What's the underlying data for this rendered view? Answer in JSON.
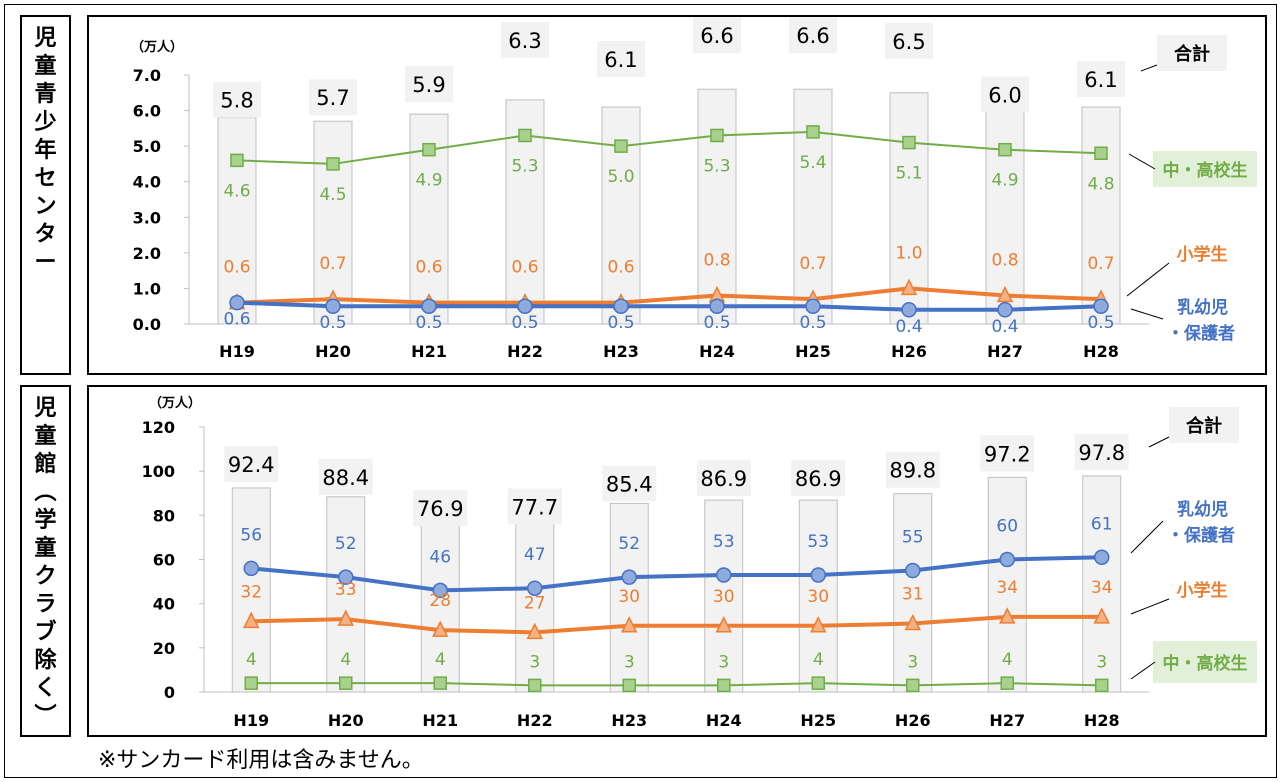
{
  "footnote": "※サンカード利用は含みません。",
  "colors": {
    "total_bar": "#f2f2f2",
    "total_bar_border": "#bfbfbf",
    "junior_high": "#70ad47",
    "elementary": "#ed7d31",
    "infant": "#4472c4",
    "label_box_green": "#e2efd9"
  },
  "chart_data": [
    {
      "type": "bar+line",
      "side_title": [
        "児",
        "童",
        "青",
        "少",
        "年",
        "セ",
        "ン",
        "タ",
        "ー"
      ],
      "unit": "（万人）",
      "categories": [
        "H19",
        "H20",
        "H21",
        "H22",
        "H23",
        "H24",
        "H25",
        "H26",
        "H27",
        "H28"
      ],
      "ylim": [
        0,
        7.0
      ],
      "yticks": [
        "0.0",
        "1.0",
        "2.0",
        "3.0",
        "4.0",
        "5.0",
        "6.0",
        "7.0"
      ],
      "total": {
        "name": "合計",
        "values": [
          5.8,
          5.7,
          5.9,
          6.3,
          6.1,
          6.6,
          6.6,
          6.5,
          6.0,
          6.1
        ],
        "labels": [
          "5.8",
          "5.7",
          "5.9",
          "6.3",
          "6.1",
          "6.6",
          "6.6",
          "6.5",
          "6.0",
          "6.1"
        ]
      },
      "series": [
        {
          "name": "中・高校生",
          "key": "junior_high",
          "marker": "square",
          "values": [
            4.6,
            4.5,
            4.9,
            5.3,
            5.0,
            5.3,
            5.4,
            5.1,
            4.9,
            4.8
          ],
          "labels": [
            "4.6",
            "4.5",
            "4.9",
            "5.3",
            "5.0",
            "5.3",
            "5.4",
            "5.1",
            "4.9",
            "4.8"
          ]
        },
        {
          "name": "小学生",
          "key": "elementary",
          "marker": "triangle",
          "values": [
            0.6,
            0.7,
            0.6,
            0.6,
            0.6,
            0.8,
            0.7,
            1.0,
            0.8,
            0.7
          ],
          "labels": [
            "0.6",
            "0.7",
            "0.6",
            "0.6",
            "0.6",
            "0.8",
            "0.7",
            "1.0",
            "0.8",
            "0.7"
          ]
        },
        {
          "name": "乳幼児・保護者",
          "name_lines": [
            "乳幼児",
            "・保護者"
          ],
          "key": "infant",
          "marker": "circle",
          "values": [
            0.6,
            0.5,
            0.5,
            0.5,
            0.5,
            0.5,
            0.5,
            0.4,
            0.4,
            0.5
          ],
          "labels": [
            "0.6",
            "0.5",
            "0.5",
            "0.5",
            "0.5",
            "0.5",
            "0.5",
            "0.4",
            "0.4",
            "0.5"
          ]
        }
      ]
    },
    {
      "type": "bar+line",
      "side_title": [
        "児",
        "童",
        "館",
        "︵",
        "学",
        "童",
        "ク",
        "ラ",
        "ブ",
        "除",
        "く",
        "︶"
      ],
      "unit": "（万人）",
      "categories": [
        "H19",
        "H20",
        "H21",
        "H22",
        "H23",
        "H24",
        "H25",
        "H26",
        "H27",
        "H28"
      ],
      "ylim": [
        0,
        120
      ],
      "yticks": [
        "0",
        "20",
        "40",
        "60",
        "80",
        "100",
        "120"
      ],
      "total": {
        "name": "合計",
        "values": [
          92.4,
          88.4,
          76.9,
          77.7,
          85.4,
          86.9,
          86.9,
          89.8,
          97.2,
          97.8
        ],
        "labels": [
          "92.4",
          "88.4",
          "76.9",
          "77.7",
          "85.4",
          "86.9",
          "86.9",
          "89.8",
          "97.2",
          "97.8"
        ]
      },
      "series": [
        {
          "name": "乳幼児・保護者",
          "name_lines": [
            "乳幼児",
            "・保護者"
          ],
          "key": "infant",
          "marker": "circle",
          "values": [
            56,
            52,
            46,
            47,
            52,
            53,
            53,
            55,
            60,
            61
          ],
          "labels": [
            "56",
            "52",
            "46",
            "47",
            "52",
            "53",
            "53",
            "55",
            "60",
            "61"
          ]
        },
        {
          "name": "小学生",
          "key": "elementary",
          "marker": "triangle",
          "values": [
            32,
            33,
            28,
            27,
            30,
            30,
            30,
            31,
            34,
            34
          ],
          "labels": [
            "32",
            "33",
            "28",
            "27",
            "30",
            "30",
            "30",
            "31",
            "34",
            "34"
          ]
        },
        {
          "name": "中・高校生",
          "key": "junior_high",
          "marker": "square",
          "values": [
            4,
            4,
            4,
            3,
            3,
            3,
            4,
            3,
            4,
            3
          ],
          "labels": [
            "4",
            "4",
            "4",
            "3",
            "3",
            "3",
            "4",
            "3",
            "4",
            "3"
          ]
        }
      ]
    }
  ]
}
